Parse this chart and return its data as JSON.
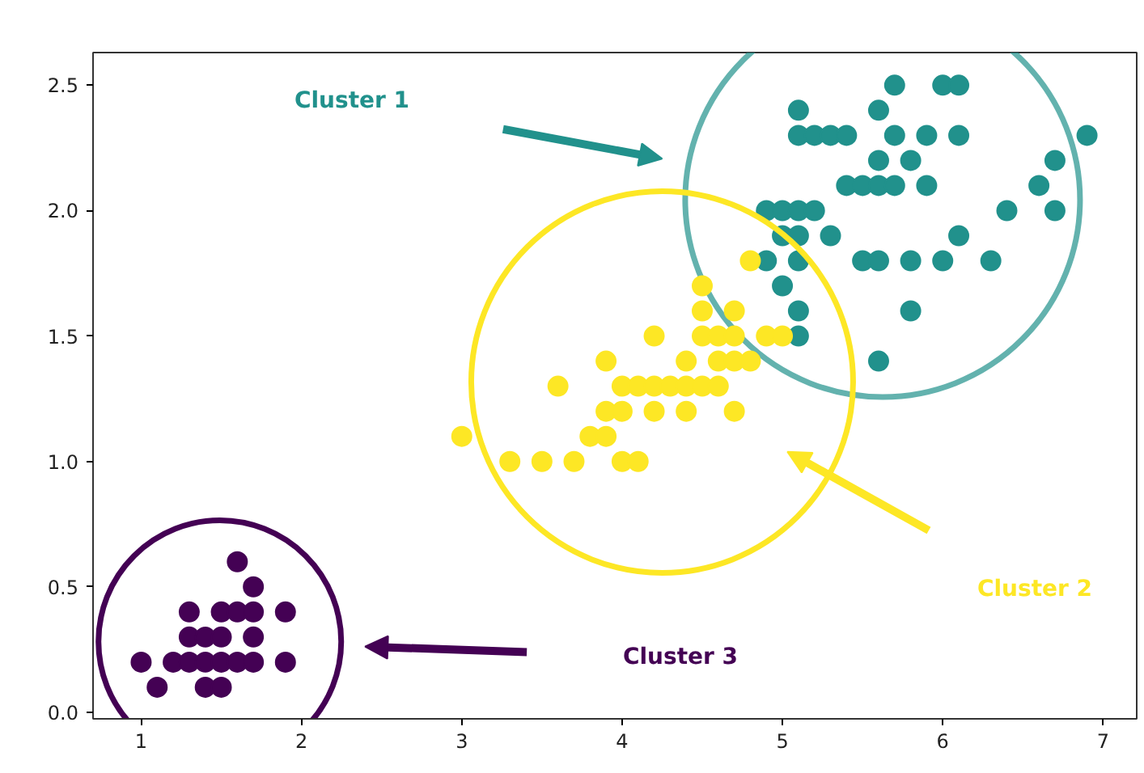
{
  "chart_data": {
    "type": "scatter",
    "xlim": [
      0.7,
      7.21
    ],
    "ylim": [
      -0.026,
      2.63
    ],
    "xticks": [
      1,
      2,
      3,
      4,
      5,
      6,
      7
    ],
    "yticks": [
      {
        "value": 0,
        "label": "0.0"
      },
      0.5,
      {
        "value": 1,
        "label": "1.0"
      },
      1.5,
      {
        "value": 2,
        "label": "2.0"
      },
      2.5
    ],
    "grid": false,
    "marker": "circle",
    "series": [
      {
        "color": "#21918c",
        "x": [
          5.7,
          6.0,
          6.1,
          5.1,
          5.6,
          5.1,
          5.2,
          5.3,
          5.4,
          5.7,
          5.9,
          6.1,
          6.9,
          5.6,
          5.8,
          6.7,
          5.4,
          5.5,
          5.6,
          5.7,
          5.9,
          6.6,
          4.9,
          5.0,
          5.1,
          5.2,
          6.4,
          6.7,
          5.0,
          5.1,
          5.3,
          6.1,
          4.9,
          5.1,
          5.5,
          5.6,
          5.8,
          6.0,
          6.3,
          5.0,
          5.1,
          5.8,
          5.1,
          5.6
        ],
        "values": [
          2.5,
          2.5,
          2.5,
          2.4,
          2.4,
          2.3,
          2.3,
          2.3,
          2.3,
          2.3,
          2.3,
          2.3,
          2.3,
          2.2,
          2.2,
          2.2,
          2.1,
          2.1,
          2.1,
          2.1,
          2.1,
          2.1,
          2.0,
          2.0,
          2.0,
          2.0,
          2.0,
          2.0,
          1.9,
          1.9,
          1.9,
          1.9,
          1.8,
          1.8,
          1.8,
          1.8,
          1.8,
          1.8,
          1.8,
          1.7,
          1.6,
          1.6,
          1.5,
          1.4
        ]
      },
      {
        "color": "#fde725",
        "x": [
          4.8,
          4.5,
          4.5,
          4.7,
          4.2,
          4.5,
          4.6,
          4.7,
          4.9,
          5.0,
          3.9,
          4.4,
          4.6,
          4.7,
          4.8,
          3.6,
          4.0,
          4.1,
          4.2,
          4.3,
          4.4,
          4.5,
          4.6,
          3.9,
          4.0,
          4.2,
          4.4,
          4.7,
          3.0,
          3.8,
          3.9,
          3.3,
          3.5,
          3.7,
          4.0,
          4.1
        ],
        "values": [
          1.8,
          1.7,
          1.6,
          1.6,
          1.5,
          1.5,
          1.5,
          1.5,
          1.5,
          1.5,
          1.4,
          1.4,
          1.4,
          1.4,
          1.4,
          1.3,
          1.3,
          1.3,
          1.3,
          1.3,
          1.3,
          1.3,
          1.3,
          1.2,
          1.2,
          1.2,
          1.2,
          1.2,
          1.1,
          1.1,
          1.1,
          1.0,
          1.0,
          1.0,
          1.0,
          1.0
        ]
      },
      {
        "color": "#440154",
        "x": [
          1.6,
          1.7,
          1.3,
          1.5,
          1.6,
          1.7,
          1.9,
          1.3,
          1.4,
          1.5,
          1.7,
          1.0,
          1.2,
          1.3,
          1.4,
          1.5,
          1.6,
          1.7,
          1.9,
          1.1,
          1.4,
          1.5
        ],
        "values": [
          0.6,
          0.5,
          0.4,
          0.4,
          0.4,
          0.4,
          0.4,
          0.3,
          0.3,
          0.3,
          0.3,
          0.2,
          0.2,
          0.2,
          0.2,
          0.2,
          0.2,
          0.2,
          0.2,
          0.1,
          0.1,
          0.1
        ]
      }
    ],
    "annotations": [
      "Cluster 1",
      "Cluster 2",
      "Cluster 3"
    ]
  }
}
